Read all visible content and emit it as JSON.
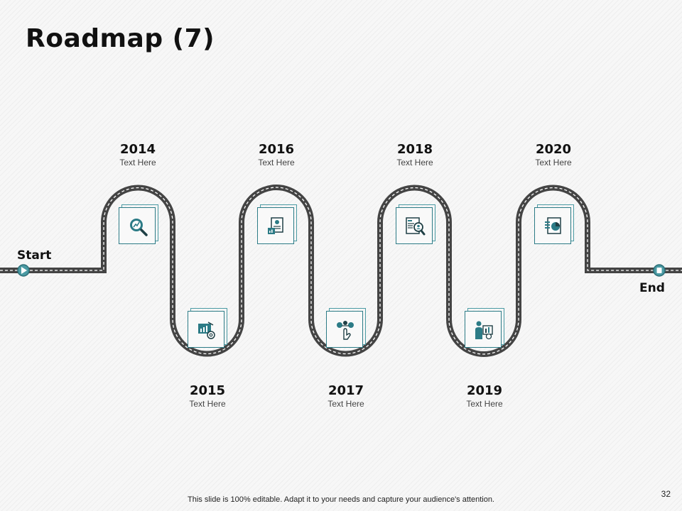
{
  "slide": {
    "title": "Roadmap (7)",
    "start_label": "Start",
    "end_label": "End",
    "footer_note": "This slide is 100% editable. Adapt it to your needs and capture your audience's attention.",
    "page_number": "32"
  },
  "colors": {
    "road": "#444444",
    "road_dash": "#ffffff",
    "accent": "#2c7b86",
    "marker": "#4a9aa3"
  },
  "milestones": [
    {
      "year": "2014",
      "text": "Text Here",
      "icon": "magnifier-chart-icon"
    },
    {
      "year": "2015",
      "text": "Text Here",
      "icon": "chart-at-icon"
    },
    {
      "year": "2016",
      "text": "Text Here",
      "icon": "document-chart-icon"
    },
    {
      "year": "2017",
      "text": "Text Here",
      "icon": "network-hand-icon"
    },
    {
      "year": "2018",
      "text": "Text Here",
      "icon": "document-search-person-icon"
    },
    {
      "year": "2019",
      "text": "Text Here",
      "icon": "person-presentation-icon"
    },
    {
      "year": "2020",
      "text": "Text Here",
      "icon": "document-pie-chart-icon"
    }
  ]
}
